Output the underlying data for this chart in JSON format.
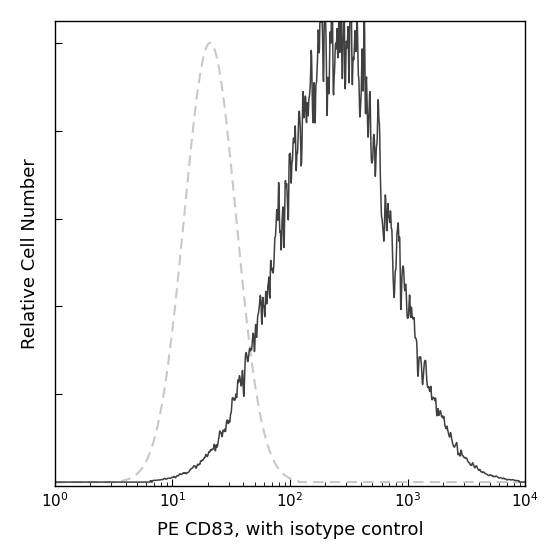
{
  "xlabel": "PE CD83, with isotype control",
  "ylabel": "Relative Cell Number",
  "background_color": "#ffffff",
  "isotype_color": "#c8c8c8",
  "antibody_color": "#404040",
  "isotype_peak_log": 1.32,
  "isotype_sigma_log": 0.22,
  "antibody_peak_log": 2.38,
  "antibody_sigma_log": 0.46,
  "noise_scale": 0.06,
  "noise_freq": 80,
  "xlabel_fontsize": 13,
  "ylabel_fontsize": 13,
  "tick_fontsize": 11,
  "linewidth_iso": 1.5,
  "linewidth_ab": 1.1
}
